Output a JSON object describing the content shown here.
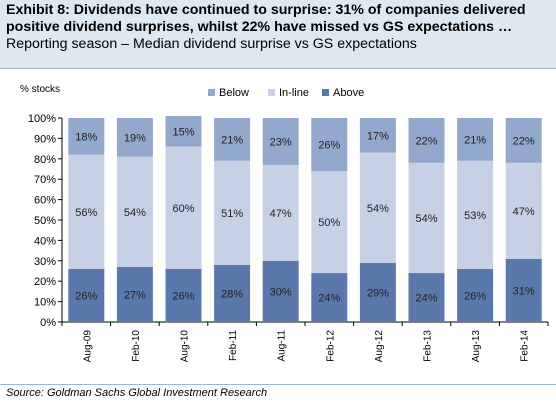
{
  "header": {
    "title_line1": "Exhibit 8: Dividends have continued to surprise: 31% of companies delivered",
    "title_line2": "positive dividend surprises, whilst 22% have missed vs GS expectations  …",
    "subtitle": "Reporting season – Median dividend surprise vs GS expectations"
  },
  "source": "Source: Goldman Sachs Global Investment Research",
  "chart_data": {
    "type": "bar",
    "stacked": true,
    "ylabel": "% stocks",
    "ylim": [
      0,
      100
    ],
    "yticks": [
      "0%",
      "10%",
      "20%",
      "30%",
      "40%",
      "50%",
      "60%",
      "70%",
      "80%",
      "90%",
      "100%"
    ],
    "categories": [
      "Aug-09",
      "Feb-10",
      "Aug-10",
      "Feb-11",
      "Aug-11",
      "Feb-12",
      "Aug-12",
      "Feb-13",
      "Aug-13",
      "Feb-14"
    ],
    "legend_position": "top",
    "series": [
      {
        "name": "Above",
        "color": "#5b78ac",
        "values": [
          26,
          27,
          26,
          28,
          30,
          24,
          29,
          24,
          26,
          31
        ],
        "labels": [
          "26%",
          "27%",
          "26%",
          "28%",
          "30%",
          "24%",
          "29%",
          "24%",
          "26%",
          "31%"
        ]
      },
      {
        "name": "In-line",
        "color": "#c7d1e6",
        "values": [
          56,
          54,
          60,
          51,
          47,
          50,
          54,
          54,
          53,
          47
        ],
        "labels": [
          "56%",
          "54%",
          "60%",
          "51%",
          "47%",
          "50%",
          "54%",
          "54%",
          "53%",
          "47%"
        ]
      },
      {
        "name": "Below",
        "color": "#93a8cd",
        "values": [
          18,
          19,
          15,
          21,
          23,
          26,
          17,
          22,
          21,
          22
        ],
        "labels": [
          "18%",
          "19%",
          "15%",
          "21%",
          "23%",
          "26%",
          "17%",
          "22%",
          "21%",
          "22%"
        ]
      }
    ],
    "legend_order": [
      "Below",
      "In-line",
      "Above"
    ],
    "grid": false
  }
}
